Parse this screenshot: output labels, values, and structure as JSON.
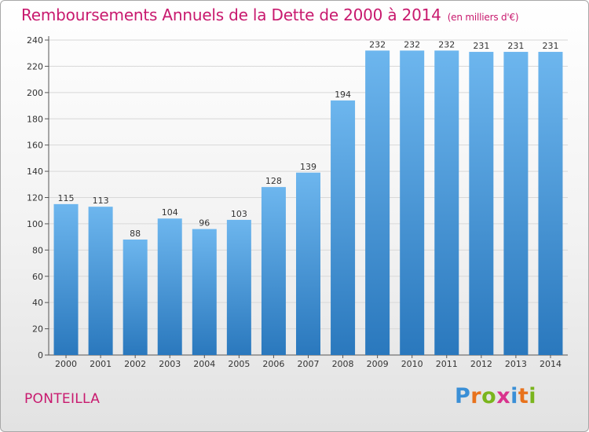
{
  "header": {
    "title": "Remboursements Annuels de la Dette de 2000 à 2014",
    "subtitle": "(en milliers d'€)"
  },
  "footer": {
    "city": "PONTEILLA"
  },
  "logo": {
    "text": "Proxiti",
    "letters": [
      {
        "ch": "P",
        "color": "#3a8fd6"
      },
      {
        "ch": "r",
        "color": "#e8721c"
      },
      {
        "ch": "o",
        "color": "#7ab51d"
      },
      {
        "ch": "x",
        "color": "#d9338d"
      },
      {
        "ch": "i",
        "color": "#3a8fd6"
      },
      {
        "ch": "t",
        "color": "#e8721c"
      },
      {
        "ch": "i",
        "color": "#7ab51d"
      }
    ]
  },
  "colors": {
    "title": "#c8196e",
    "bar_light": "#6db6ee",
    "bar_dark": "#2a78bd"
  },
  "chart_data": {
    "type": "bar",
    "title": "Remboursements Annuels de la Dette de 2000 à 2014",
    "subtitle": "(en milliers d'€)",
    "categories": [
      "2000",
      "2001",
      "2002",
      "2003",
      "2004",
      "2005",
      "2006",
      "2007",
      "2008",
      "2009",
      "2010",
      "2011",
      "2012",
      "2013",
      "2014"
    ],
    "values": [
      115,
      113,
      88,
      104,
      96,
      103,
      128,
      139,
      194,
      232,
      232,
      232,
      231,
      231,
      231
    ],
    "ylim": [
      0,
      240
    ],
    "yticks": [
      0,
      20,
      40,
      60,
      80,
      100,
      120,
      140,
      160,
      180,
      200,
      220,
      240
    ],
    "grid": true,
    "xlabel": "",
    "ylabel": ""
  }
}
